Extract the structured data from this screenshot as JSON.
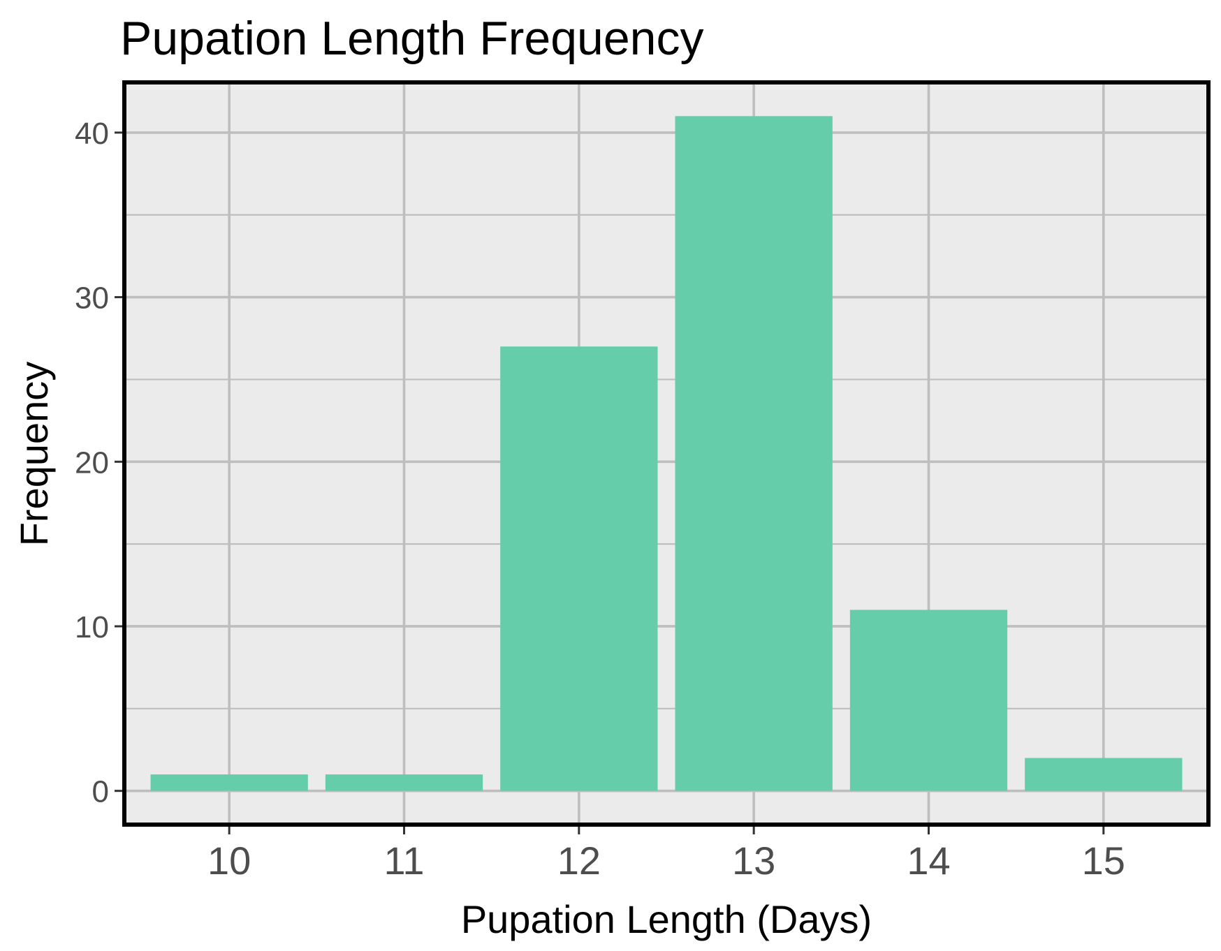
{
  "chart_data": {
    "type": "bar",
    "title": "Pupation Length Frequency",
    "xlabel": "Pupation Length (Days)",
    "ylabel": "Frequency",
    "categories": [
      "10",
      "11",
      "12",
      "13",
      "14",
      "15"
    ],
    "values": [
      1,
      1,
      27,
      41,
      11,
      2
    ],
    "x_ticks": [
      "10",
      "11",
      "12",
      "13",
      "14",
      "15"
    ],
    "y_ticks": [
      0,
      10,
      20,
      30,
      40
    ],
    "y_tick_labels": [
      "0",
      "10",
      "20",
      "30",
      "40"
    ],
    "ylim": [
      -2.05,
      43.05
    ],
    "xlim": [
      9.4,
      15.6
    ],
    "grid": true,
    "legend": "none",
    "colors": {
      "bar": "#66cdaa",
      "panel_background": "#ebebeb",
      "grid_line": "#bebebe",
      "panel_border": "#000000",
      "tick_label": "#4d4d4d"
    }
  }
}
